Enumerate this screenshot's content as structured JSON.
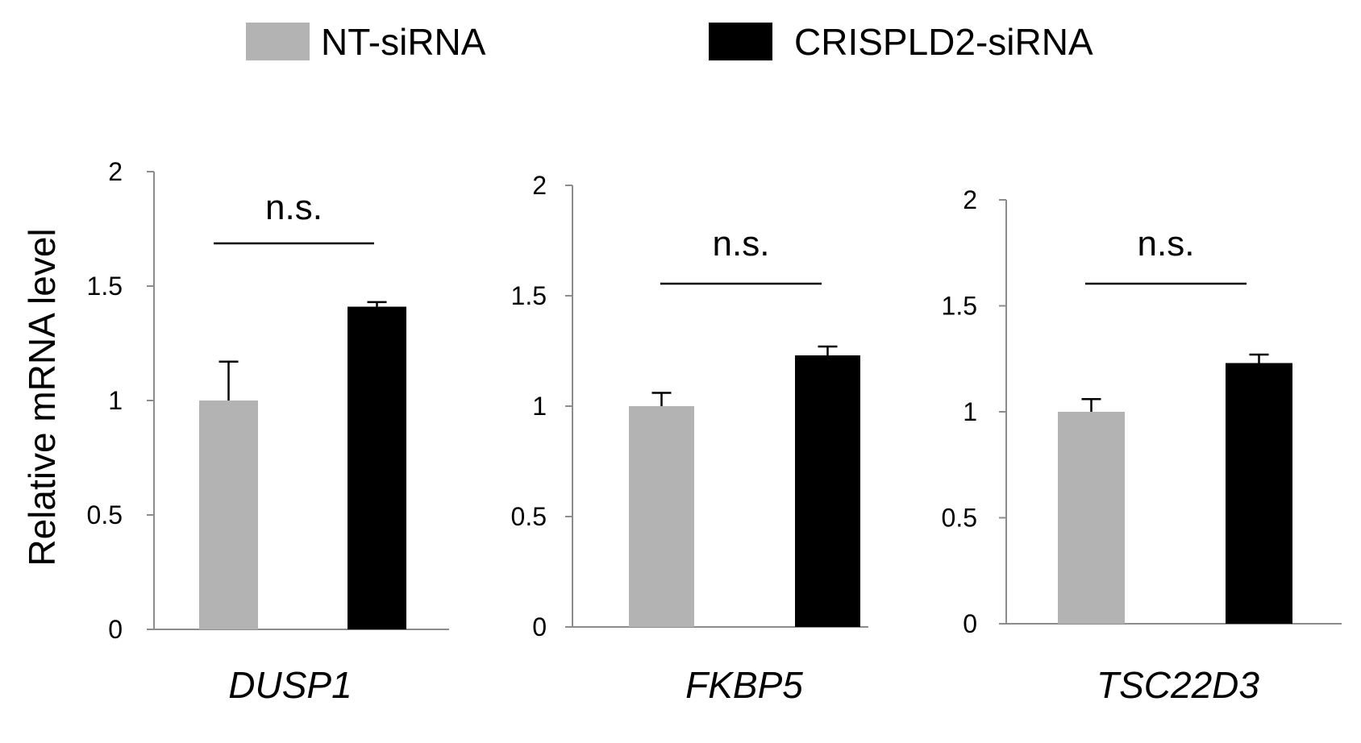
{
  "legend": {
    "items": [
      {
        "label": "NT-siRNA",
        "color": "#b3b3b3"
      },
      {
        "label": "CRISPLD2-siRNA",
        "color": "#000000"
      }
    ]
  },
  "ylabel": "Relative mRNA level",
  "chart_data": [
    {
      "type": "bar",
      "categories": [
        "NT-siRNA",
        "CRISPLD2-siRNA"
      ],
      "values": [
        1.0,
        1.41
      ],
      "errors": [
        0.17,
        0.02
      ],
      "colors": [
        "#b3b3b3",
        "#000000"
      ],
      "xlabel": "DUSP1",
      "ylabel": "Relative mRNA level",
      "ylim": [
        0,
        2
      ],
      "yticks": [
        "0",
        "0.5",
        "1",
        "1.5",
        "2"
      ],
      "significance": "n.s.",
      "legend": "top"
    },
    {
      "type": "bar",
      "categories": [
        "NT-siRNA",
        "CRISPLD2-siRNA"
      ],
      "values": [
        1.0,
        1.23
      ],
      "errors": [
        0.06,
        0.04
      ],
      "colors": [
        "#b3b3b3",
        "#000000"
      ],
      "xlabel": "FKBP5",
      "ylabel": "",
      "ylim": [
        0,
        2
      ],
      "yticks": [
        "0",
        "0.5",
        "1",
        "1.5",
        "2"
      ],
      "significance": "n.s.",
      "legend": "top"
    },
    {
      "type": "bar",
      "categories": [
        "NT-siRNA",
        "CRISPLD2-siRNA"
      ],
      "values": [
        1.0,
        1.23
      ],
      "errors": [
        0.06,
        0.04
      ],
      "colors": [
        "#b3b3b3",
        "#000000"
      ],
      "xlabel": "TSC22D3",
      "ylabel": "",
      "ylim": [
        0,
        2
      ],
      "yticks": [
        "0",
        "0.5",
        "1",
        "1.5",
        "2"
      ],
      "significance": "n.s.",
      "legend": "top"
    }
  ]
}
